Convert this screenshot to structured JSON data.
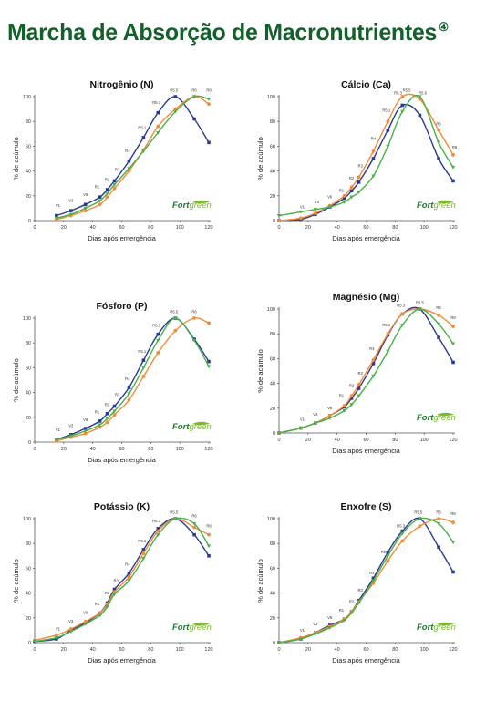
{
  "page": {
    "title": "Marcha de Absorção de Macronutrientes",
    "title_mark": "④"
  },
  "brand": {
    "fort": "Fort",
    "green": "green"
  },
  "colors": {
    "blue": "#2b3a8f",
    "orange": "#f08c3a",
    "green": "#4ab04a",
    "title": "#14602a",
    "brand_green": "#7ab929"
  },
  "chart_data": [
    {
      "type": "line",
      "title": "Nitrogênio (N)",
      "xlabel": "Dias após emergência",
      "ylabel": "% de acúmulo",
      "xlim": [
        0,
        120
      ],
      "ylim": [
        0,
        100
      ],
      "xticks": [
        0,
        20,
        40,
        60,
        80,
        100,
        120
      ],
      "yticks": [
        0,
        20,
        40,
        60,
        80,
        100
      ],
      "series": [
        {
          "color": "blue",
          "marker": "square",
          "x": [
            15,
            25,
            35,
            45,
            50,
            55,
            65,
            75,
            85,
            97,
            110,
            120
          ],
          "y": [
            4,
            8,
            13,
            19,
            25,
            32,
            48,
            67,
            87,
            100,
            82,
            63
          ]
        },
        {
          "color": "orange",
          "marker": "circle",
          "x": [
            15,
            25,
            35,
            45,
            50,
            55,
            65,
            75,
            85,
            97,
            110,
            120
          ],
          "y": [
            1,
            4,
            8,
            13,
            19,
            26,
            40,
            57,
            76,
            90,
            100,
            94
          ]
        },
        {
          "color": "green",
          "marker": "triangle",
          "x": [
            15,
            25,
            35,
            45,
            50,
            55,
            65,
            75,
            85,
            97,
            110,
            120
          ],
          "y": [
            2,
            5,
            10,
            16,
            22,
            29,
            42,
            56,
            71,
            88,
            100,
            98
          ]
        }
      ],
      "stage_labels": [
        {
          "text": "V1",
          "x": 16,
          "y": 11
        },
        {
          "text": "V3",
          "x": 25,
          "y": 15
        },
        {
          "text": "V6",
          "x": 35,
          "y": 20
        },
        {
          "text": "R1",
          "x": 43,
          "y": 26
        },
        {
          "text": "R2",
          "x": 50,
          "y": 32
        },
        {
          "text": "R3",
          "x": 57,
          "y": 40
        },
        {
          "text": "R4",
          "x": 64,
          "y": 55
        },
        {
          "text": "R5.1",
          "x": 74,
          "y": 74
        },
        {
          "text": "R5.3",
          "x": 84,
          "y": 94
        },
        {
          "text": "R5.5",
          "x": 96,
          "y": 104
        },
        {
          "text": "R6",
          "x": 110,
          "y": 104
        },
        {
          "text": "R8",
          "x": 120,
          "y": 104
        }
      ]
    },
    {
      "type": "line",
      "title": "Cálcio (Ca)",
      "xlabel": "Dias após emergência",
      "ylabel": "% de acúmulo",
      "xlim": [
        0,
        120
      ],
      "ylim": [
        0,
        100
      ],
      "xticks": [
        0,
        20,
        40,
        60,
        80,
        100,
        120
      ],
      "yticks": [
        0,
        20,
        40,
        60,
        80,
        100
      ],
      "series": [
        {
          "color": "blue",
          "marker": "square",
          "x": [
            0,
            15,
            25,
            35,
            45,
            50,
            55,
            65,
            75,
            85,
            97,
            110,
            120
          ],
          "y": [
            0,
            1,
            5,
            11,
            18,
            24,
            31,
            50,
            73,
            93,
            85,
            50,
            32
          ]
        },
        {
          "color": "orange",
          "marker": "circle",
          "x": [
            0,
            15,
            25,
            35,
            45,
            50,
            55,
            65,
            75,
            85,
            97,
            110,
            120
          ],
          "y": [
            0,
            2,
            6,
            12,
            20,
            27,
            35,
            56,
            80,
            100,
            98,
            73,
            53
          ]
        },
        {
          "color": "green",
          "marker": "triangle",
          "x": [
            0,
            15,
            25,
            35,
            45,
            50,
            55,
            65,
            75,
            85,
            97,
            110,
            120
          ],
          "y": [
            4,
            7,
            9,
            11,
            15,
            19,
            23,
            36,
            60,
            88,
            100,
            63,
            43
          ]
        }
      ],
      "stage_labels": [
        {
          "text": "V1",
          "x": 16,
          "y": 10
        },
        {
          "text": "V3",
          "x": 26,
          "y": 14
        },
        {
          "text": "V6",
          "x": 35,
          "y": 18
        },
        {
          "text": "R1",
          "x": 43,
          "y": 23
        },
        {
          "text": "R2",
          "x": 50,
          "y": 33
        },
        {
          "text": "R3",
          "x": 56,
          "y": 43
        },
        {
          "text": "R4",
          "x": 65,
          "y": 65
        },
        {
          "text": "R5.1",
          "x": 74,
          "y": 88
        },
        {
          "text": "R5.3",
          "x": 82,
          "y": 102
        },
        {
          "text": "R5.5",
          "x": 88,
          "y": 104
        },
        {
          "text": "R5.6",
          "x": 99,
          "y": 102
        },
        {
          "text": "R6",
          "x": 110,
          "y": 77
        },
        {
          "text": "R8",
          "x": 121,
          "y": 58
        }
      ]
    },
    {
      "type": "line",
      "title": "Fósforo (P)",
      "xlabel": "Dias após emergência",
      "ylabel": "% de acúmulo",
      "xlim": [
        0,
        120
      ],
      "ylim": [
        0,
        100
      ],
      "xticks": [
        0,
        20,
        40,
        60,
        80,
        100,
        120
      ],
      "yticks": [
        0,
        20,
        40,
        60,
        80,
        100
      ],
      "series": [
        {
          "color": "blue",
          "marker": "square",
          "x": [
            15,
            25,
            35,
            45,
            50,
            55,
            65,
            75,
            85,
            97,
            110,
            120
          ],
          "y": [
            2,
            6,
            11,
            17,
            23,
            29,
            44,
            66,
            87,
            100,
            83,
            65
          ]
        },
        {
          "color": "orange",
          "marker": "circle",
          "x": [
            15,
            25,
            35,
            45,
            50,
            55,
            65,
            75,
            85,
            97,
            110,
            120
          ],
          "y": [
            1,
            4,
            7,
            12,
            16,
            22,
            34,
            53,
            72,
            90,
            100,
            96
          ]
        },
        {
          "color": "green",
          "marker": "triangle",
          "x": [
            15,
            25,
            35,
            45,
            50,
            55,
            65,
            75,
            85,
            97,
            110,
            120
          ],
          "y": [
            2,
            5,
            9,
            14,
            19,
            25,
            39,
            60,
            82,
            100,
            82,
            61
          ]
        }
      ],
      "stage_labels": [
        {
          "text": "V1",
          "x": 16,
          "y": 9
        },
        {
          "text": "V3",
          "x": 25,
          "y": 12
        },
        {
          "text": "V6",
          "x": 35,
          "y": 17
        },
        {
          "text": "R1",
          "x": 43,
          "y": 23
        },
        {
          "text": "R2",
          "x": 50,
          "y": 29
        },
        {
          "text": "R3",
          "x": 57,
          "y": 37
        },
        {
          "text": "R4",
          "x": 64,
          "y": 50
        },
        {
          "text": "R5.1",
          "x": 74,
          "y": 72
        },
        {
          "text": "R5.3",
          "x": 84,
          "y": 93
        },
        {
          "text": "R5.5",
          "x": 96,
          "y": 104
        },
        {
          "text": "R6",
          "x": 110,
          "y": 104
        }
      ]
    },
    {
      "type": "line",
      "title": "Magnésio (Mg)",
      "xlabel": "Dias após emergência",
      "ylabel": "% de acúmulo",
      "xlim": [
        0,
        120
      ],
      "ylim": [
        0,
        100
      ],
      "xticks": [
        0,
        20,
        40,
        60,
        80,
        100,
        120
      ],
      "yticks": [
        0,
        20,
        40,
        60,
        80,
        100
      ],
      "series": [
        {
          "color": "blue",
          "marker": "square",
          "x": [
            0,
            15,
            25,
            35,
            45,
            50,
            55,
            65,
            75,
            85,
            97,
            110,
            120
          ],
          "y": [
            0,
            4,
            8,
            14,
            21,
            28,
            36,
            56,
            79,
            96,
            100,
            77,
            57
          ]
        },
        {
          "color": "orange",
          "marker": "circle",
          "x": [
            0,
            15,
            25,
            35,
            45,
            50,
            55,
            65,
            75,
            85,
            97,
            110,
            120
          ],
          "y": [
            0,
            4,
            8,
            14,
            22,
            30,
            39,
            59,
            80,
            96,
            100,
            95,
            86
          ]
        },
        {
          "color": "green",
          "marker": "triangle",
          "x": [
            0,
            15,
            25,
            35,
            45,
            50,
            55,
            65,
            75,
            85,
            97,
            110,
            120
          ],
          "y": [
            0,
            4,
            8,
            12,
            18,
            23,
            30,
            46,
            66,
            87,
            100,
            88,
            72
          ]
        }
      ],
      "stage_labels": [
        {
          "text": "V1",
          "x": 16,
          "y": 10
        },
        {
          "text": "V3",
          "x": 25,
          "y": 14
        },
        {
          "text": "V6",
          "x": 35,
          "y": 19
        },
        {
          "text": "R1",
          "x": 43,
          "y": 29
        },
        {
          "text": "R2",
          "x": 50,
          "y": 37
        },
        {
          "text": "R3",
          "x": 56,
          "y": 47
        },
        {
          "text": "R4",
          "x": 64,
          "y": 67
        },
        {
          "text": "R5.1",
          "x": 74,
          "y": 86
        },
        {
          "text": "R5.3",
          "x": 84,
          "y": 102
        },
        {
          "text": "R5.5",
          "x": 97,
          "y": 104
        },
        {
          "text": "R6",
          "x": 110,
          "y": 100
        },
        {
          "text": "R8",
          "x": 120,
          "y": 92
        }
      ]
    },
    {
      "type": "line",
      "title": "Potássio (K)",
      "xlabel": "Dias após emergência",
      "ylabel": "% de acúmulo",
      "xlim": [
        0,
        120
      ],
      "ylim": [
        0,
        100
      ],
      "xticks": [
        0,
        20,
        40,
        60,
        80,
        100,
        120
      ],
      "yticks": [
        0,
        20,
        40,
        60,
        80,
        100
      ],
      "series": [
        {
          "color": "blue",
          "marker": "square",
          "x": [
            0,
            15,
            25,
            35,
            45,
            50,
            55,
            65,
            75,
            85,
            97,
            110,
            120
          ],
          "y": [
            1,
            3,
            10,
            16,
            24,
            32,
            43,
            56,
            75,
            92,
            100,
            87,
            70
          ]
        },
        {
          "color": "orange",
          "marker": "circle",
          "x": [
            0,
            15,
            25,
            35,
            45,
            50,
            55,
            65,
            75,
            85,
            97,
            110,
            120
          ],
          "y": [
            2,
            6,
            11,
            17,
            24,
            31,
            41,
            53,
            72,
            90,
            100,
            93,
            87
          ]
        },
        {
          "color": "green",
          "marker": "triangle",
          "x": [
            0,
            15,
            25,
            35,
            45,
            50,
            55,
            65,
            75,
            85,
            97,
            110,
            120
          ],
          "y": [
            1,
            4,
            9,
            15,
            22,
            29,
            39,
            50,
            68,
            87,
            100,
            96,
            78
          ]
        }
      ],
      "stage_labels": [
        {
          "text": "V1",
          "x": 16,
          "y": 10
        },
        {
          "text": "V3",
          "x": 25,
          "y": 16
        },
        {
          "text": "V6",
          "x": 35,
          "y": 23
        },
        {
          "text": "R1",
          "x": 43,
          "y": 30
        },
        {
          "text": "R2",
          "x": 50,
          "y": 39
        },
        {
          "text": "R3",
          "x": 56,
          "y": 49
        },
        {
          "text": "R4",
          "x": 64,
          "y": 62
        },
        {
          "text": "R5.1",
          "x": 74,
          "y": 81
        },
        {
          "text": "R5.3",
          "x": 84,
          "y": 97
        },
        {
          "text": "R5.5",
          "x": 96,
          "y": 104
        },
        {
          "text": "R6",
          "x": 110,
          "y": 101
        },
        {
          "text": "R8",
          "x": 120,
          "y": 93
        }
      ]
    },
    {
      "type": "line",
      "title": "Enxofre (S)",
      "xlabel": "Dias após emergência",
      "ylabel": "% de acúmulo",
      "xlim": [
        0,
        120
      ],
      "ylim": [
        0,
        100
      ],
      "xticks": [
        0,
        20,
        40,
        60,
        80,
        100,
        120
      ],
      "yticks": [
        0,
        20,
        40,
        60,
        80,
        100
      ],
      "series": [
        {
          "color": "blue",
          "marker": "square",
          "x": [
            0,
            15,
            25,
            35,
            45,
            50,
            55,
            65,
            75,
            85,
            97,
            110,
            120
          ],
          "y": [
            0,
            3,
            8,
            14,
            19,
            25,
            34,
            52,
            73,
            90,
            100,
            77,
            57
          ]
        },
        {
          "color": "orange",
          "marker": "circle",
          "x": [
            0,
            15,
            25,
            35,
            45,
            50,
            55,
            65,
            75,
            85,
            97,
            110,
            120
          ],
          "y": [
            0,
            4,
            8,
            13,
            19,
            25,
            33,
            48,
            66,
            82,
            94,
            100,
            97
          ]
        },
        {
          "color": "green",
          "marker": "triangle",
          "x": [
            0,
            15,
            25,
            35,
            45,
            50,
            55,
            65,
            75,
            85,
            97,
            110,
            120
          ],
          "y": [
            0,
            3,
            7,
            12,
            18,
            24,
            32,
            50,
            70,
            88,
            100,
            96,
            81
          ]
        }
      ],
      "stage_labels": [
        {
          "text": "V1",
          "x": 16,
          "y": 9
        },
        {
          "text": "V3",
          "x": 25,
          "y": 14
        },
        {
          "text": "V6",
          "x": 35,
          "y": 19
        },
        {
          "text": "R1",
          "x": 43,
          "y": 25
        },
        {
          "text": "R2",
          "x": 50,
          "y": 32
        },
        {
          "text": "R3",
          "x": 56,
          "y": 41
        },
        {
          "text": "R4",
          "x": 64,
          "y": 55
        },
        {
          "text": "R5.1",
          "x": 73,
          "y": 72
        },
        {
          "text": "R5.3",
          "x": 84,
          "y": 93
        },
        {
          "text": "R5.5",
          "x": 96,
          "y": 104
        },
        {
          "text": "R6",
          "x": 110,
          "y": 104
        },
        {
          "text": "R8",
          "x": 120,
          "y": 103
        }
      ]
    }
  ]
}
